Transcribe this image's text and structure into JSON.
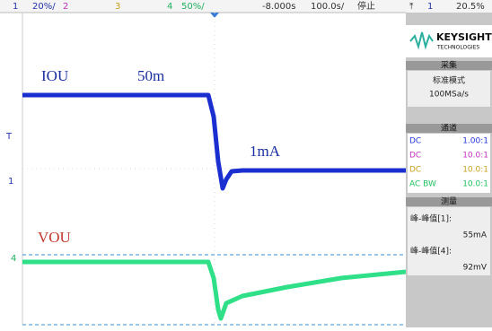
{
  "top_bar": {
    "items": [
      "1",
      "20%/",
      "2",
      "3",
      "4",
      "50%/",
      "-8.000s",
      "100.0s/",
      "停止",
      "1",
      "20.5%"
    ]
  },
  "annotations": {
    "current": "IOU",
    "current_scale": "50m",
    "current_step": "1mA",
    "voltage": "VOU"
  },
  "markers": {
    "trigger": "T",
    "channel1": "1",
    "channel4": "4"
  },
  "side_panel": {
    "brand": "KEYSIGHT",
    "brand_sub": "TECHNOLOGIES",
    "acquire": {
      "title": "采集",
      "mode": "标准模式",
      "rate": "100MSa/s"
    },
    "channels": {
      "title": "通道",
      "rows": [
        [
          "DC",
          "1.00:1"
        ],
        [
          "DC",
          "10.0:1"
        ],
        [
          "DC",
          "10.0:1"
        ],
        [
          "AC BW",
          "10.0:1"
        ]
      ]
    },
    "measure": {
      "title": "测量",
      "items": [
        {
          "label": "峰-峰值[1]:",
          "value": "55mA"
        },
        {
          "label": "峰-峰值[4]:",
          "value": "92mV"
        }
      ]
    }
  }
}
